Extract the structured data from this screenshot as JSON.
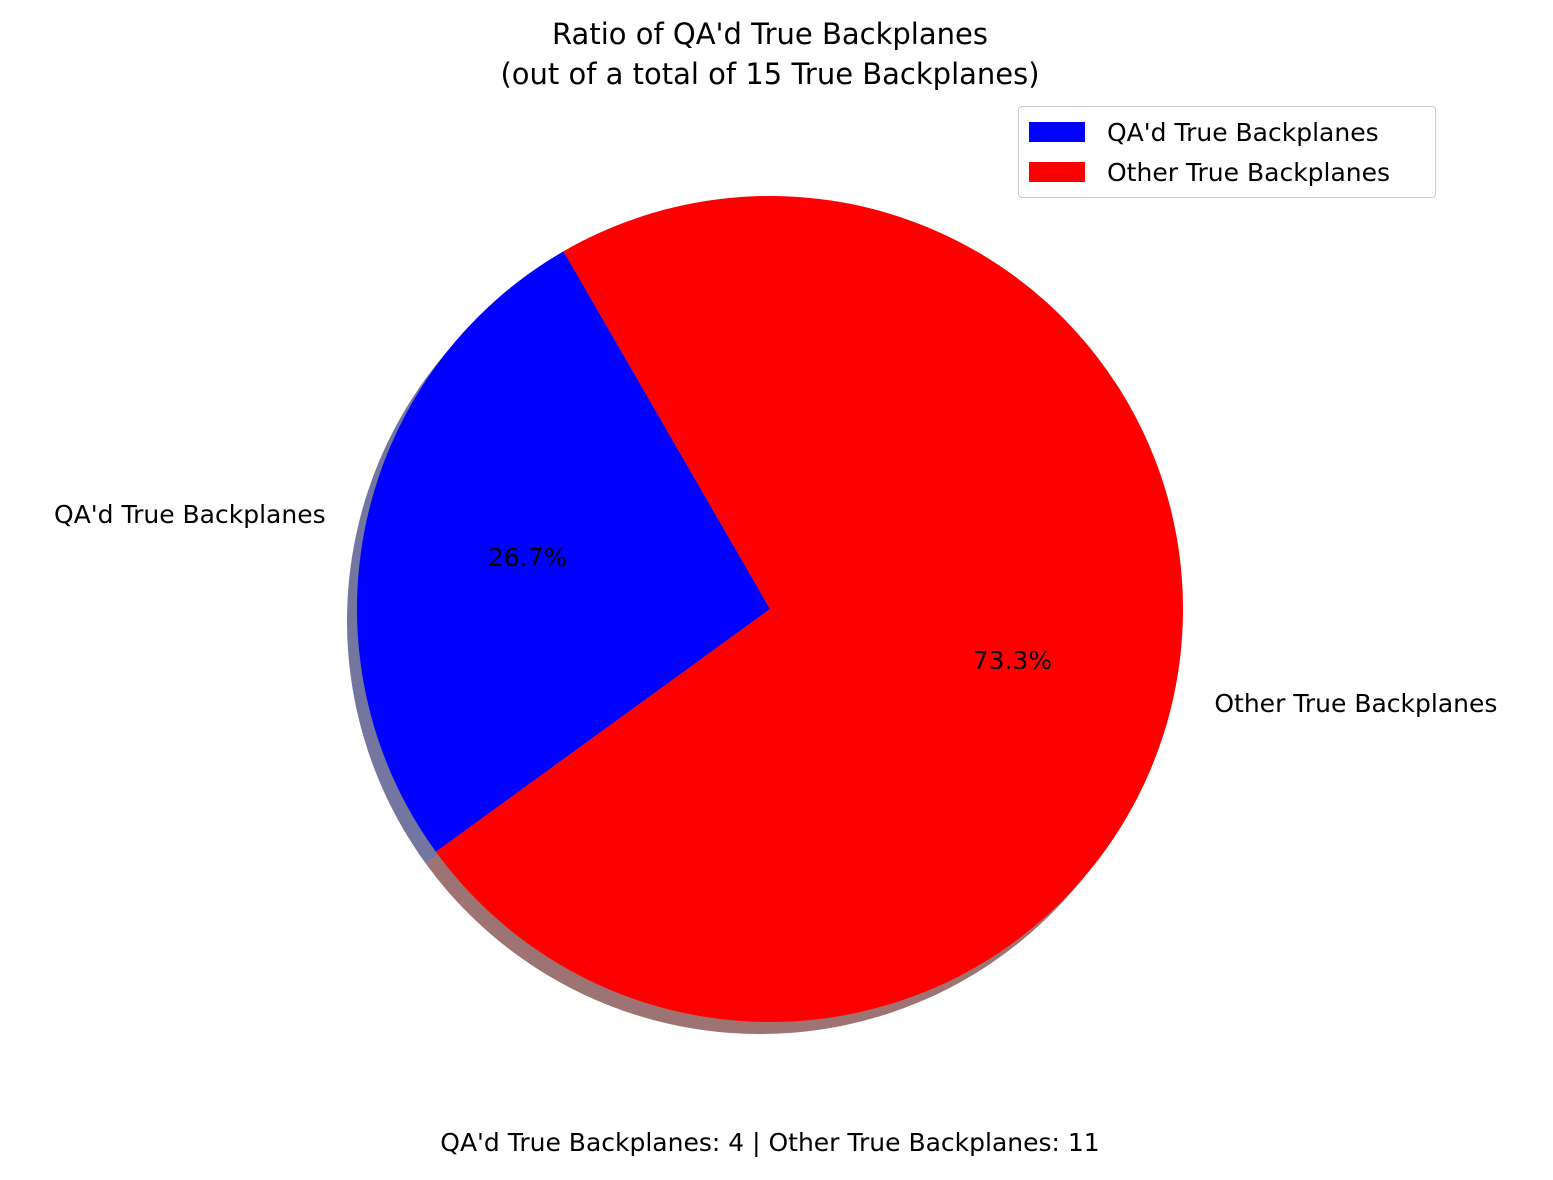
{
  "chart_data": {
    "type": "pie",
    "title": "Ratio of QA'd True Backplanes",
    "subtitle": "(out of a total of 15 True Backplanes)",
    "slices": [
      {
        "label": "QA'd True Backplanes",
        "value": 4,
        "pct_label": "26.7%",
        "color": "#0000ff"
      },
      {
        "label": "Other True Backplanes",
        "value": 11,
        "pct_label": "73.3%",
        "color": "#ff0000"
      }
    ],
    "legend": {
      "placement": "top-right",
      "items": [
        "QA'd True Backplanes",
        "Other True Backplanes"
      ]
    },
    "shadow": true,
    "footer": "QA'd True Backplanes: 4 | Other True Backplanes: 11"
  }
}
